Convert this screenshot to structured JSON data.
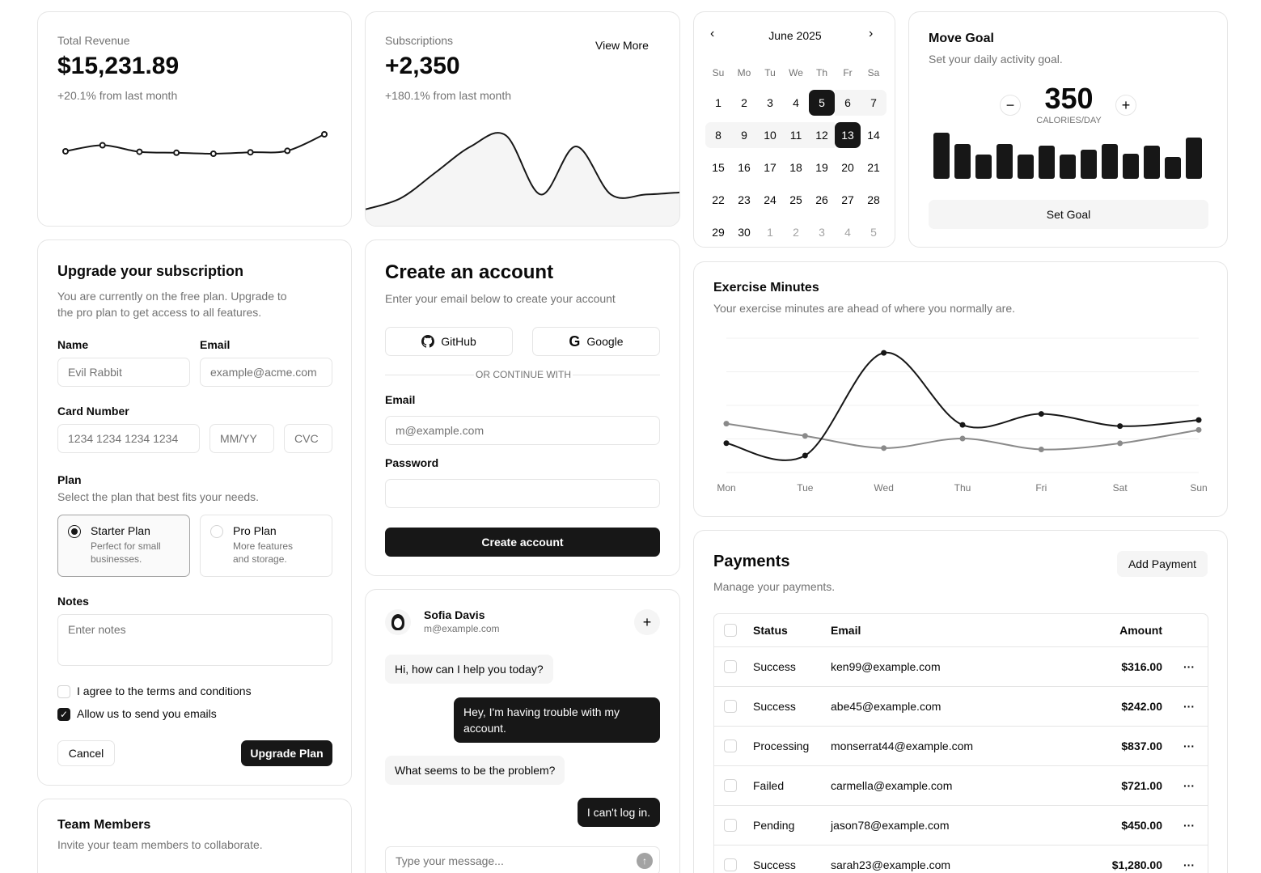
{
  "revenue": {
    "label": "Total Revenue",
    "value": "$15,231.89",
    "delta": "+20.1% from last month"
  },
  "subscriptions": {
    "label": "Subscriptions",
    "value": "+2,350",
    "delta": "+180.1% from last month",
    "view_more": "View More"
  },
  "calendar": {
    "month": "June 2025",
    "weekdays": [
      "Su",
      "Mo",
      "Tu",
      "We",
      "Th",
      "Fr",
      "Sa"
    ],
    "weeks": [
      [
        "1",
        "2",
        "3",
        "4",
        "5",
        "6",
        "7"
      ],
      [
        "8",
        "9",
        "10",
        "11",
        "12",
        "13",
        "14"
      ],
      [
        "15",
        "16",
        "17",
        "18",
        "19",
        "20",
        "21"
      ],
      [
        "22",
        "23",
        "24",
        "25",
        "26",
        "27",
        "28"
      ],
      [
        "29",
        "30",
        "1",
        "2",
        "3",
        "4",
        "5"
      ]
    ],
    "range_start": "5",
    "range_end": "13"
  },
  "move_goal": {
    "title": "Move Goal",
    "subtitle": "Set your daily activity goal.",
    "value": "350",
    "unit": "CALORIES/DAY",
    "button": "Set Goal",
    "bar_levels": [
      0.95,
      0.72,
      0.5,
      0.72,
      0.5,
      0.68,
      0.5,
      0.6,
      0.72,
      0.52,
      0.68,
      0.45,
      0.85
    ]
  },
  "upgrade": {
    "title": "Upgrade your subscription",
    "description": "You are currently on the free plan. Upgrade to the pro plan to get access to all features.",
    "name_label": "Name",
    "name_value": "Evil Rabbit",
    "email_label": "Email",
    "email_placeholder": "example@acme.com",
    "card_label": "Card Number",
    "card_placeholder": "1234 1234 1234 1234",
    "expiry_placeholder": "MM/YY",
    "cvc_placeholder": "CVC",
    "plan_label": "Plan",
    "plan_hint": "Select the plan that best fits your needs.",
    "plans": [
      {
        "name": "Starter Plan",
        "desc": "Perfect for small businesses.",
        "selected": true
      },
      {
        "name": "Pro Plan",
        "desc": "More features and storage.",
        "selected": false
      }
    ],
    "notes_label": "Notes",
    "notes_placeholder": "Enter notes",
    "terms_label": "I agree to the terms and conditions",
    "emails_label": "Allow us to send you emails",
    "cancel": "Cancel",
    "submit": "Upgrade Plan"
  },
  "team": {
    "title": "Team Members",
    "subtitle": "Invite your team members to collaborate."
  },
  "create_account": {
    "title": "Create an account",
    "subtitle": "Enter your email below to create your account",
    "github": "GitHub",
    "google": "Google",
    "divider": "OR CONTINUE WITH",
    "email_label": "Email",
    "email_placeholder": "m@example.com",
    "password_label": "Password",
    "submit": "Create account"
  },
  "chat": {
    "name": "Sofia Davis",
    "email": "m@example.com",
    "messages": [
      {
        "from": "agent",
        "text": "Hi, how can I help you today?"
      },
      {
        "from": "user",
        "text": "Hey, I'm having trouble with my account."
      },
      {
        "from": "agent",
        "text": "What seems to be the problem?"
      },
      {
        "from": "user",
        "text": "I can't log in."
      }
    ],
    "input_placeholder": "Type your message..."
  },
  "exercise": {
    "title": "Exercise Minutes",
    "subtitle": "Your exercise minutes are ahead of where you normally are."
  },
  "payments": {
    "title": "Payments",
    "subtitle": "Manage your payments.",
    "add_button": "Add Payment",
    "columns": {
      "status": "Status",
      "email": "Email",
      "amount": "Amount"
    },
    "rows": [
      {
        "status": "Success",
        "email": "ken99@example.com",
        "amount": "$316.00"
      },
      {
        "status": "Success",
        "email": "abe45@example.com",
        "amount": "$242.00"
      },
      {
        "status": "Processing",
        "email": "monserrat44@example.com",
        "amount": "$837.00"
      },
      {
        "status": "Failed",
        "email": "carmella@example.com",
        "amount": "$721.00"
      },
      {
        "status": "Pending",
        "email": "jason78@example.com",
        "amount": "$450.00"
      },
      {
        "status": "Success",
        "email": "sarah23@example.com",
        "amount": "$1,280.00"
      }
    ]
  },
  "chart_data": [
    {
      "type": "line",
      "title": "",
      "x": [
        1,
        2,
        3,
        4,
        5,
        6,
        7,
        8
      ],
      "series": [
        {
          "values": [
            10,
            12.5,
            9.8,
            9.4,
            9,
            9.6,
            10.2,
            17
          ]
        }
      ],
      "ylim": [
        0,
        20
      ],
      "grid": false,
      "colors": [
        "#171717"
      ]
    },
    {
      "type": "area",
      "title": "",
      "x": [
        1,
        2,
        3,
        4,
        5,
        6,
        7,
        8,
        9,
        10
      ],
      "series": [
        {
          "values": [
            2,
            3.5,
            7,
            10.5,
            12,
            4,
            10.5,
            4,
            4,
            4.3
          ]
        }
      ],
      "ylim": [
        0,
        14
      ],
      "grid": false,
      "colors": [
        "#171717",
        "#f5f5f5"
      ]
    },
    {
      "type": "line",
      "title": "",
      "categories": [
        "Mon",
        "Tue",
        "Wed",
        "Thu",
        "Fri",
        "Sat",
        "Sun"
      ],
      "series": [
        {
          "values": [
            240,
            139,
            980,
            390,
            480,
            380,
            430
          ]
        },
        {
          "values": [
            400,
            300,
            200,
            278,
            189,
            239,
            349
          ]
        }
      ],
      "ylim": [
        0,
        1100
      ],
      "grid": true,
      "colors": [
        "#171717",
        "#8a8a8a"
      ]
    }
  ]
}
